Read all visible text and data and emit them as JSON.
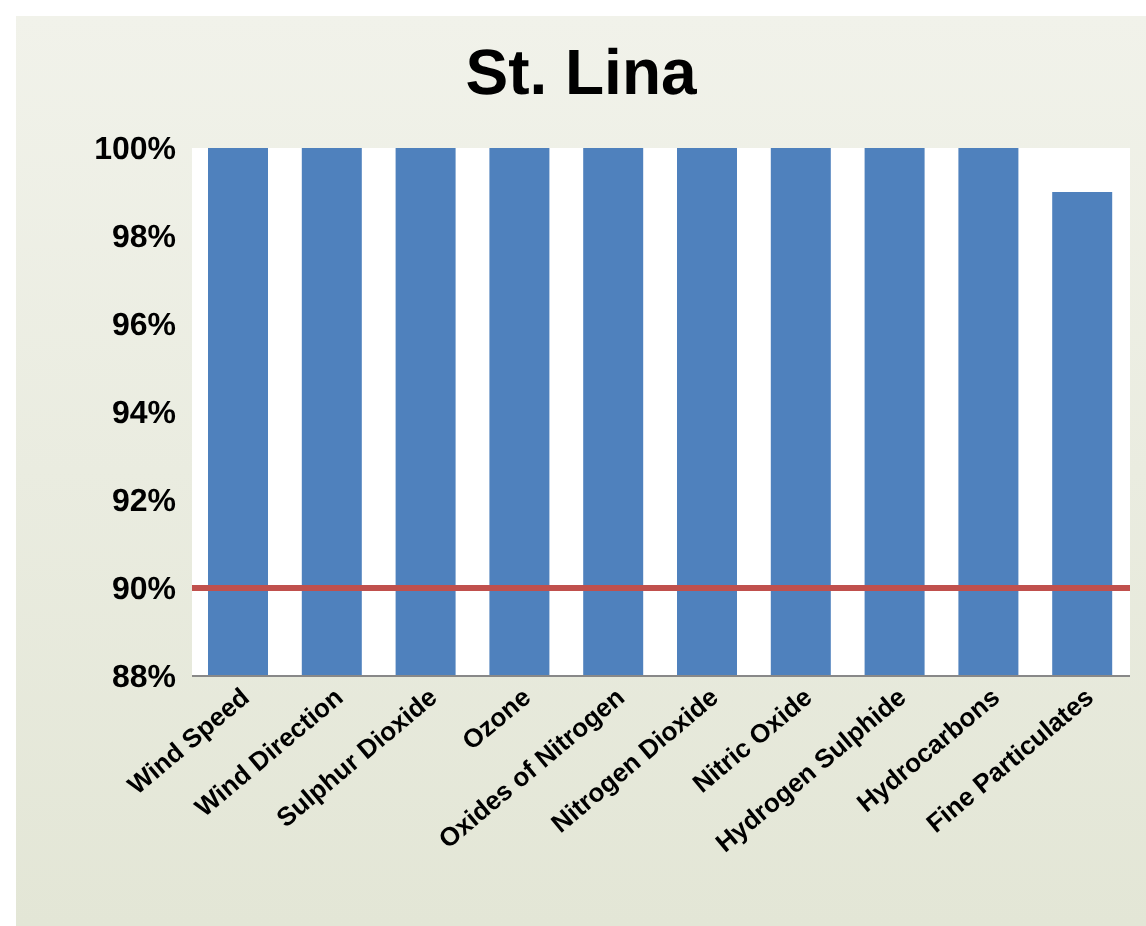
{
  "chart_data": {
    "type": "bar",
    "title": "St. Lina",
    "categories": [
      "Wind Speed",
      "Wind Direction",
      "Sulphur Dioxide",
      "Ozone",
      "Oxides of Nitrogen",
      "Nitrogen Dioxide",
      "Nitric Oxide",
      "Hydrogen Sulphide",
      "Hydrocarbons",
      "Fine Particulates"
    ],
    "values": [
      100,
      100,
      100,
      100,
      100,
      100,
      100,
      100,
      100,
      99
    ],
    "color": "#4f81bd",
    "ylim": [
      88,
      100
    ],
    "yticks": [
      {
        "value": 88,
        "label": "88%"
      },
      {
        "value": 90,
        "label": "90%"
      },
      {
        "value": 92,
        "label": "92%"
      },
      {
        "value": 94,
        "label": "94%"
      },
      {
        "value": 96,
        "label": "96%"
      },
      {
        "value": 98,
        "label": "98%"
      },
      {
        "value": 100,
        "label": "100%"
      }
    ],
    "ref_lines": [
      {
        "axis": "y",
        "value": 90,
        "color": "#c0504d"
      }
    ],
    "grid": false
  }
}
